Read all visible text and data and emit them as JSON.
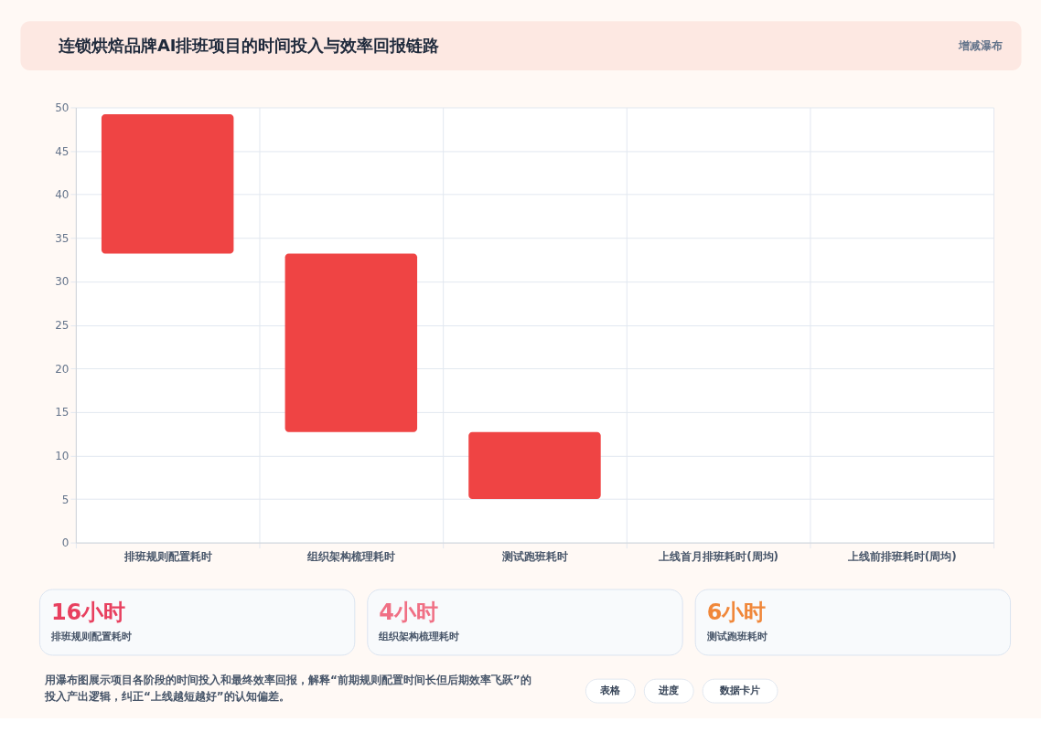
{
  "chart_data": {
    "type": "bar",
    "title": "连锁烘焙品牌AI排班项目的时间投入与效率回报链路",
    "subtitle": "增减瀑布",
    "categories": [
      "排班规则配置耗时",
      "组织架构梳理耗时",
      "测试跑班耗时",
      "上线首月排班耗时(周均)",
      "上线前排班耗时(周均)"
    ],
    "values": [
      16,
      20.5,
      7.7,
      null,
      null
    ],
    "base": [
      33.2,
      12.7,
      5,
      null,
      null
    ],
    "color": "#ef4444",
    "ylim": [
      0,
      50
    ],
    "yticks": [
      0,
      5,
      10,
      15,
      20,
      25,
      30,
      35,
      40,
      45,
      50
    ],
    "grid": true,
    "annotations": [
      "16小时",
      "排班规则配置耗时",
      "4小时",
      "组织架构梳理耗时",
      "6小时",
      "测试跑班耗时",
      "用瀑布图展示项目各阶段的时间投入和最终效率回报，解释“前期规则配置时间长但后期效率飞跃”的投入产出逻辑，纠正“上线越短越好”的认知偏差。",
      "表格",
      "进度",
      "数据卡片"
    ]
  }
}
